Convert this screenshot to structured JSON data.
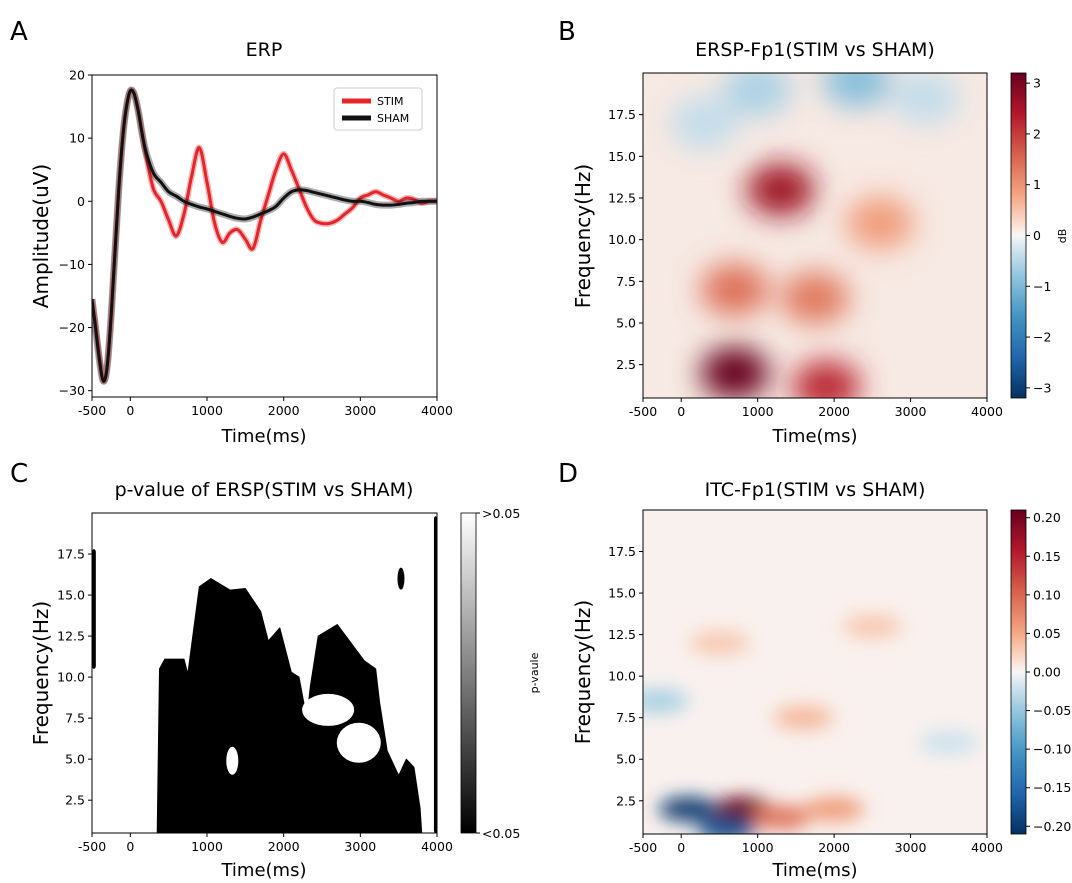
{
  "panels": {
    "A": {
      "letter": "A",
      "chart_data": {
        "type": "line",
        "title": "ERP",
        "xlabel": "Time(ms)",
        "ylabel": "Amplitude(uV)",
        "xlim": [
          -500,
          4000
        ],
        "ylim": [
          -31,
          20
        ],
        "xticks": [
          -500,
          0,
          1000,
          2000,
          3000,
          4000
        ],
        "xtick_labels": [
          "-500",
          "0",
          "1000",
          "2000",
          "3000",
          "4000"
        ],
        "yticks": [
          20,
          10,
          0,
          -10,
          -20,
          -30
        ],
        "ytick_labels": [
          "20",
          "10",
          "0",
          "−10",
          "−20",
          "−30"
        ],
        "legend_position": "top-right",
        "series": [
          {
            "name": "STIM",
            "color": "#e3262a",
            "x": [
              -500,
              -450,
              -400,
              -350,
              -300,
              -250,
              -200,
              -150,
              -100,
              -50,
              0,
              50,
              100,
              150,
              200,
              300,
              400,
              500,
              600,
              700,
              800,
              900,
              1000,
              1100,
              1200,
              1300,
              1400,
              1500,
              1600,
              1700,
              1800,
              1900,
              2000,
              2100,
              2200,
              2300,
              2400,
              2500,
              2600,
              2700,
              2800,
              2900,
              3000,
              3100,
              3200,
              3300,
              3400,
              3500,
              3600,
              3700,
              3800,
              3900,
              4000
            ],
            "values": [
              -15.5,
              -20,
              -25,
              -28.5,
              -26,
              -18,
              -8,
              2,
              10,
              15,
              17.5,
              17,
              14.5,
              11,
              7.5,
              2,
              0,
              -3,
              -5.5,
              -2,
              4,
              8.5,
              3,
              -3.5,
              -6.5,
              -5,
              -4.5,
              -6,
              -7.5,
              -3,
              1,
              5,
              7.5,
              5,
              2,
              -1,
              -3,
              -3.5,
              -3.5,
              -3,
              -2,
              -1,
              0.5,
              1,
              1.5,
              1,
              0.5,
              0,
              0.5,
              0.3,
              -0.3,
              0,
              0
            ]
          },
          {
            "name": "SHAM",
            "color": "#111111",
            "x": [
              -500,
              -450,
              -400,
              -350,
              -300,
              -250,
              -200,
              -150,
              -100,
              -50,
              0,
              50,
              100,
              150,
              200,
              300,
              400,
              500,
              600,
              700,
              800,
              900,
              1000,
              1100,
              1200,
              1300,
              1400,
              1500,
              1600,
              1700,
              1800,
              1900,
              2000,
              2100,
              2200,
              2300,
              2400,
              2500,
              2600,
              2700,
              2800,
              2900,
              3000,
              3100,
              3200,
              3300,
              3400,
              3500,
              3600,
              3700,
              3800,
              3900,
              4000
            ],
            "values": [
              -15.5,
              -20.5,
              -25.5,
              -28.5,
              -26,
              -18,
              -8,
              2,
              10,
              15,
              17.5,
              17,
              14.5,
              11,
              8,
              4.5,
              3,
              1.5,
              0.8,
              0,
              -0.5,
              -0.9,
              -1.2,
              -1.6,
              -2,
              -2.4,
              -2.7,
              -2.8,
              -2.5,
              -2,
              -1.5,
              -0.8,
              0.5,
              1.5,
              1.8,
              1.7,
              1.4,
              1.1,
              0.8,
              0.5,
              0.2,
              0,
              0,
              -0.2,
              -0.5,
              -0.6,
              -0.6,
              -0.5,
              -0.3,
              -0.2,
              0,
              0,
              0
            ]
          }
        ]
      }
    },
    "B": {
      "letter": "B",
      "chart_data": {
        "type": "heatmap",
        "title": "ERSP-Fp1(STIM vs SHAM)",
        "xlabel": "Time(ms)",
        "ylabel": "Frequency(Hz)",
        "xlim": [
          -500,
          4000
        ],
        "ylim": [
          0.5,
          20
        ],
        "xticks": [
          -500,
          0,
          1000,
          2000,
          3000,
          4000
        ],
        "xtick_labels": [
          "-500",
          "0",
          "1000",
          "2000",
          "3000",
          "4000"
        ],
        "yticks": [
          2.5,
          5.0,
          7.5,
          10.0,
          12.5,
          15.0,
          17.5
        ],
        "ytick_labels": [
          "2.5",
          "5.0",
          "7.5",
          "10.0",
          "12.5",
          "15.0",
          "17.5"
        ],
        "colorbar_label": "dB",
        "colorbar_range": [
          -3.2,
          3.2
        ],
        "colorbar_ticks": [
          3,
          2,
          1,
          0,
          -1,
          -2,
          -3
        ],
        "colorbar_tick_labels": [
          "3",
          "2",
          "1",
          "0",
          "−1",
          "−2",
          "−3"
        ],
        "colormap": "RdBu_r",
        "features": [
          {
            "t": 700,
            "f": 2.0,
            "value": 3.2
          },
          {
            "t": 1300,
            "f": 13.0,
            "value": 2.6
          },
          {
            "t": 1900,
            "f": 1.2,
            "value": 2.2
          },
          {
            "t": 700,
            "f": 7.0,
            "value": 1.4
          },
          {
            "t": 1750,
            "f": 6.5,
            "value": 1.3
          },
          {
            "t": 2600,
            "f": 11.0,
            "value": 0.9
          },
          {
            "t": 1000,
            "f": 19.0,
            "value": -0.6
          },
          {
            "t": 2300,
            "f": 19.5,
            "value": -0.9
          },
          {
            "t": 3200,
            "f": 18.5,
            "value": -0.4
          },
          {
            "t": 300,
            "f": 17.0,
            "value": -0.4
          }
        ]
      }
    },
    "C": {
      "letter": "C",
      "chart_data": {
        "type": "heatmap",
        "title": "p-value of ERSP(STIM vs SHAM)",
        "xlabel": "Time(ms)",
        "ylabel": "Frequency(Hz)",
        "xlim": [
          -500,
          4000
        ],
        "ylim": [
          0.5,
          20
        ],
        "xticks": [
          -500,
          0,
          1000,
          2000,
          3000,
          4000
        ],
        "xtick_labels": [
          "-500",
          "0",
          "1000",
          "2000",
          "3000",
          "4000"
        ],
        "yticks": [
          2.5,
          5.0,
          7.5,
          10.0,
          12.5,
          15.0,
          17.5
        ],
        "ytick_labels": [
          "2.5",
          "5.0",
          "7.5",
          "10.0",
          "12.5",
          "15.0",
          "17.5"
        ],
        "colorbar_label": "p-vaule",
        "colorbar_tick_labels": [
          ">0.05",
          "<0.05"
        ],
        "colormap": "gray",
        "significant_region_top_freq": [
          {
            "t": 350,
            "f": 0.5
          },
          {
            "t": 380,
            "f": 10.5
          },
          {
            "t": 450,
            "f": 11.1
          },
          {
            "t": 700,
            "f": 11.1
          },
          {
            "t": 750,
            "f": 10.2
          },
          {
            "t": 900,
            "f": 15.5
          },
          {
            "t": 1050,
            "f": 16.0
          },
          {
            "t": 1300,
            "f": 15.3
          },
          {
            "t": 1500,
            "f": 15.4
          },
          {
            "t": 1700,
            "f": 14.0
          },
          {
            "t": 1800,
            "f": 12.2
          },
          {
            "t": 1950,
            "f": 13.0
          },
          {
            "t": 2100,
            "f": 10.3
          },
          {
            "t": 2200,
            "f": 10.0
          },
          {
            "t": 2300,
            "f": 7.5
          },
          {
            "t": 2350,
            "f": 9.5
          },
          {
            "t": 2450,
            "f": 12.5
          },
          {
            "t": 2700,
            "f": 13.2
          },
          {
            "t": 3050,
            "f": 11.0
          },
          {
            "t": 3200,
            "f": 10.5
          },
          {
            "t": 3250,
            "f": 8.5
          },
          {
            "t": 3350,
            "f": 5.5
          },
          {
            "t": 3500,
            "f": 4.0
          },
          {
            "t": 3600,
            "f": 5.0
          },
          {
            "t": 3700,
            "f": 4.5
          },
          {
            "t": 3780,
            "f": 2.0
          },
          {
            "t": 3800,
            "f": 0.5
          }
        ],
        "significant_edge_regions": [
          {
            "t_range": [
              -500,
              -450
            ],
            "f_range": [
              10.5,
              17.8
            ]
          },
          {
            "t_range": [
              3960,
              4000
            ],
            "f_range": [
              0.5,
              19.8
            ]
          }
        ]
      }
    },
    "D": {
      "letter": "D",
      "chart_data": {
        "type": "heatmap",
        "title": "ITC-Fp1(STIM vs SHAM)",
        "xlabel": "Time(ms)",
        "ylabel": "Frequency(Hz)",
        "xlim": [
          -500,
          4000
        ],
        "ylim": [
          0.5,
          20
        ],
        "xticks": [
          -500,
          0,
          1000,
          2000,
          3000,
          4000
        ],
        "xtick_labels": [
          "-500",
          "0",
          "1000",
          "2000",
          "3000",
          "4000"
        ],
        "yticks": [
          2.5,
          5.0,
          7.5,
          10.0,
          12.5,
          15.0,
          17.5
        ],
        "ytick_labels": [
          "2.5",
          "5.0",
          "7.5",
          "10.0",
          "12.5",
          "15.0",
          "17.5"
        ],
        "colorbar_range": [
          -0.21,
          0.21
        ],
        "colorbar_ticks": [
          0.2,
          0.15,
          0.1,
          0.05,
          0.0,
          -0.05,
          -0.1,
          -0.15,
          -0.2
        ],
        "colorbar_tick_labels": [
          "0.20",
          "0.15",
          "0.10",
          "0.05",
          "0.00",
          "−0.05",
          "−0.10",
          "−0.15",
          "−0.20"
        ],
        "colormap": "RdBu_r",
        "features": [
          {
            "t": 800,
            "f": 2.0,
            "value": 0.21
          },
          {
            "t": 1300,
            "f": 1.5,
            "value": 0.09
          },
          {
            "t": 2000,
            "f": 2.0,
            "value": 0.06
          },
          {
            "t": 100,
            "f": 2.0,
            "value": -0.2
          },
          {
            "t": 600,
            "f": 0.8,
            "value": -0.18
          },
          {
            "t": 1600,
            "f": 7.5,
            "value": 0.04
          },
          {
            "t": 2500,
            "f": 13.0,
            "value": 0.03
          },
          {
            "t": -300,
            "f": 8.5,
            "value": -0.04
          },
          {
            "t": 3500,
            "f": 6.0,
            "value": -0.02
          },
          {
            "t": 500,
            "f": 12.0,
            "value": 0.03
          }
        ]
      }
    }
  }
}
